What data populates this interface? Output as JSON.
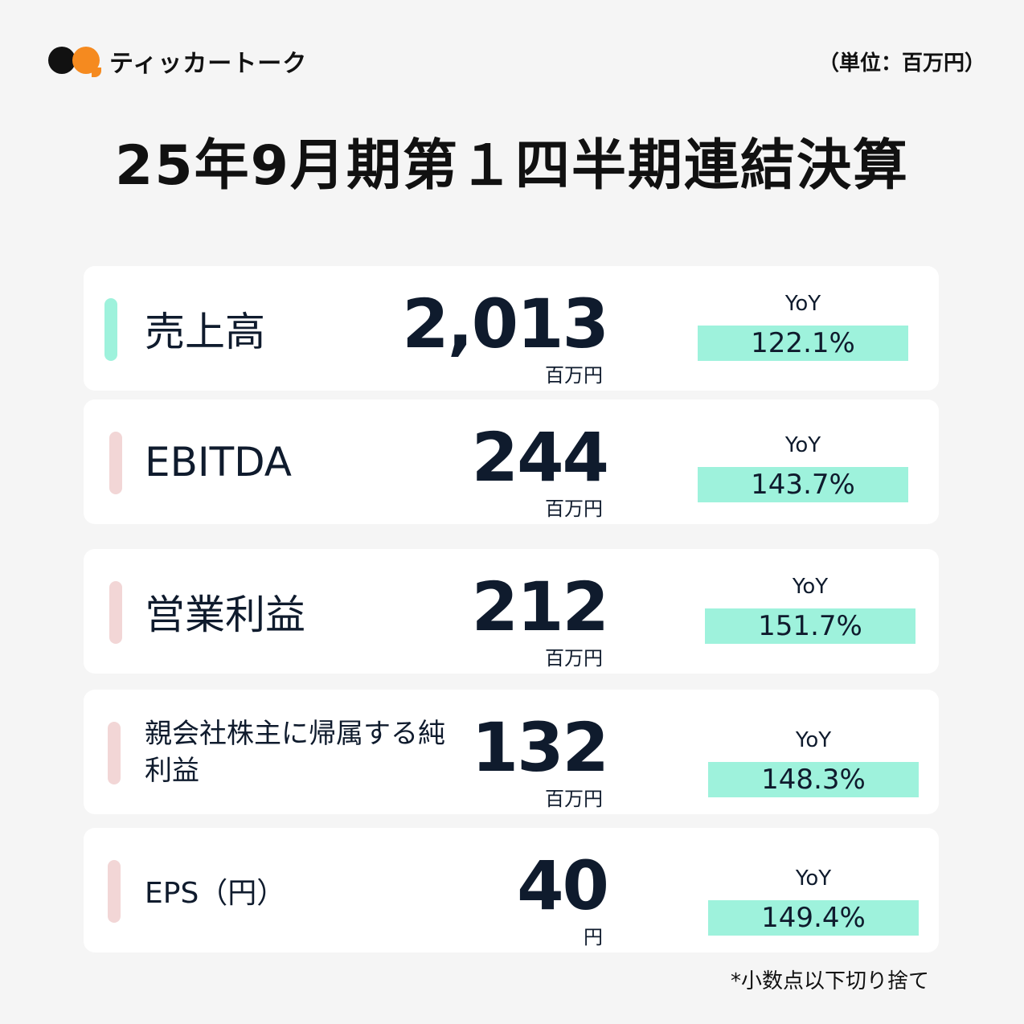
{
  "brand": {
    "name": "ティッカートーク",
    "colors": {
      "dark": "#111111",
      "orange": "#f58a1f"
    }
  },
  "unit_note": "（単位：百万円）",
  "title": "25年9月期第１四半期連結決算",
  "yoy_label": "YoY",
  "accent_colors": {
    "highlight": "#9ef2dc",
    "bar_primary": "#9ef2dc",
    "bar_secondary": "#f2d6d6"
  },
  "metrics": [
    {
      "label": "売上高",
      "value": "2,013",
      "unit": "百万円",
      "yoy": "122.1%"
    },
    {
      "label": "EBITDA",
      "value": "244",
      "unit": "百万円",
      "yoy": "143.7%"
    },
    {
      "label": "営業利益",
      "value": "212",
      "unit": "百万円",
      "yoy": "151.7%"
    },
    {
      "label": "親会社株主に帰属する純利益",
      "value": "132",
      "unit": "百万円",
      "yoy": "148.3%"
    },
    {
      "label": "EPS（円）",
      "value": "40",
      "unit": "円",
      "yoy": "149.4%"
    }
  ],
  "footnote": "*小数点以下切り捨て"
}
